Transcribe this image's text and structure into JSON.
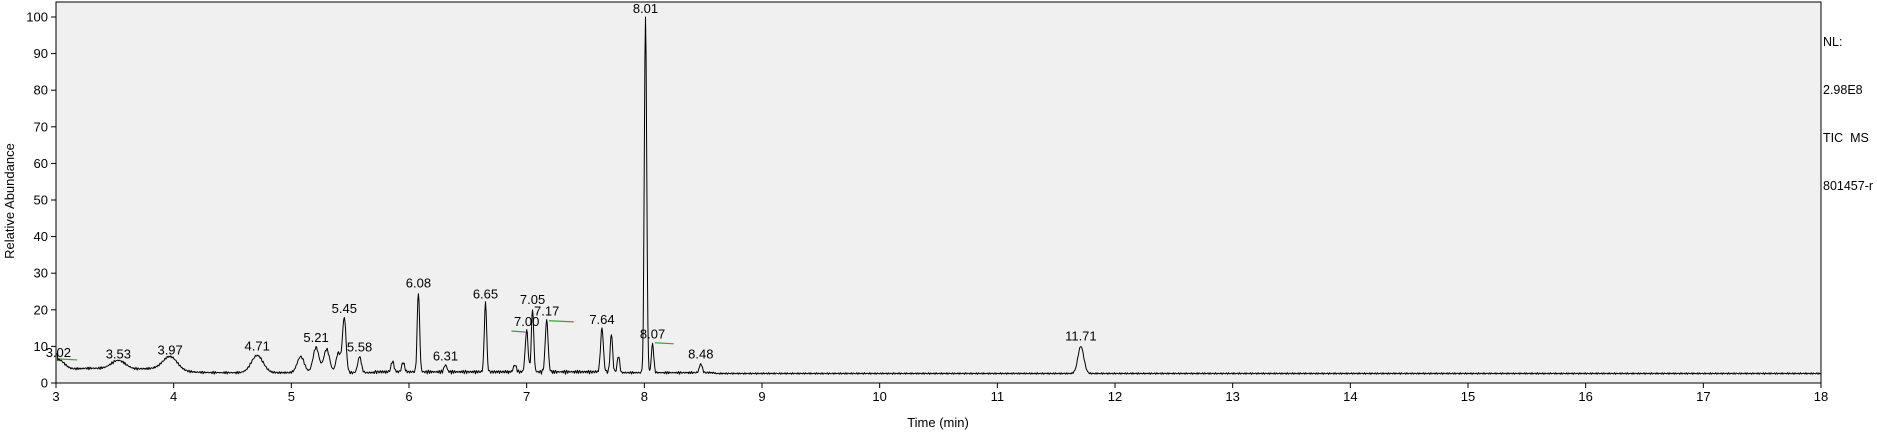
{
  "chart_data": {
    "type": "line",
    "xlabel": "Time (min)",
    "ylabel": "Relative Abundance",
    "xlim": [
      3,
      18
    ],
    "ylim": [
      0,
      100
    ],
    "x_ticks": [
      "3",
      "4",
      "5",
      "6",
      "7",
      "8",
      "9",
      "10",
      "11",
      "12",
      "13",
      "14",
      "15",
      "16",
      "17",
      "18"
    ],
    "y_ticks": [
      "0",
      "10",
      "20",
      "30",
      "40",
      "50",
      "60",
      "70",
      "80",
      "90",
      "100"
    ],
    "info_lines": [
      "NL:",
      "2.98E8",
      "TIC  MS",
      "801457-r"
    ],
    "baseline": 2.6,
    "peaks": [
      {
        "rt": 3.02,
        "label": "3.02",
        "height": 5.5,
        "labeled": true,
        "width": 0.05
      },
      {
        "rt": 3.53,
        "label": "3.53",
        "height": 5.0,
        "labeled": true,
        "width": 0.06
      },
      {
        "rt": 3.97,
        "label": "3.97",
        "height": 6.2,
        "labeled": true,
        "width": 0.06
      },
      {
        "rt": 4.71,
        "label": "4.71",
        "height": 7.3,
        "labeled": true,
        "width": 0.05
      },
      {
        "rt": 5.08,
        "label": "",
        "height": 7.0,
        "labeled": false,
        "width": 0.03
      },
      {
        "rt": 5.21,
        "label": "5.21",
        "height": 9.5,
        "labeled": true,
        "width": 0.025
      },
      {
        "rt": 5.3,
        "label": "",
        "height": 9.0,
        "labeled": false,
        "width": 0.025
      },
      {
        "rt": 5.4,
        "label": "",
        "height": 8.0,
        "labeled": false,
        "width": 0.02
      },
      {
        "rt": 5.45,
        "label": "5.45",
        "height": 17.5,
        "labeled": true,
        "width": 0.015
      },
      {
        "rt": 5.58,
        "label": "5.58",
        "height": 7.0,
        "labeled": true,
        "width": 0.015
      },
      {
        "rt": 5.86,
        "label": "",
        "height": 5.5,
        "labeled": false,
        "width": 0.012
      },
      {
        "rt": 5.95,
        "label": "",
        "height": 5.2,
        "labeled": false,
        "width": 0.012
      },
      {
        "rt": 6.08,
        "label": "6.08",
        "height": 24.5,
        "labeled": true,
        "width": 0.01
      },
      {
        "rt": 6.31,
        "label": "6.31",
        "height": 4.5,
        "labeled": true,
        "width": 0.012
      },
      {
        "rt": 6.65,
        "label": "6.65",
        "height": 21.5,
        "labeled": true,
        "width": 0.01
      },
      {
        "rt": 6.9,
        "label": "",
        "height": 4.5,
        "labeled": false,
        "width": 0.012
      },
      {
        "rt": 7.0,
        "label": "7.00",
        "height": 14.0,
        "labeled": true,
        "width": 0.012
      },
      {
        "rt": 7.05,
        "label": "7.05",
        "height": 20.0,
        "labeled": true,
        "width": 0.01
      },
      {
        "rt": 7.17,
        "label": "7.17",
        "height": 16.8,
        "labeled": true,
        "width": 0.012
      },
      {
        "rt": 7.64,
        "label": "7.64",
        "height": 14.5,
        "labeled": true,
        "width": 0.012
      },
      {
        "rt": 7.72,
        "label": "",
        "height": 13.0,
        "labeled": false,
        "width": 0.01
      },
      {
        "rt": 7.78,
        "label": "",
        "height": 7.0,
        "labeled": false,
        "width": 0.01
      },
      {
        "rt": 8.01,
        "label": "8.01",
        "height": 100,
        "labeled": true,
        "width": 0.01
      },
      {
        "rt": 8.07,
        "label": "8.07",
        "height": 10.5,
        "labeled": true,
        "width": 0.01
      },
      {
        "rt": 8.48,
        "label": "8.48",
        "height": 5.0,
        "labeled": true,
        "width": 0.012
      },
      {
        "rt": 11.71,
        "label": "11.71",
        "height": 10.0,
        "labeled": true,
        "width": 0.025
      }
    ],
    "baseline_marks": [
      {
        "x1": 3.02,
        "x2": 3.18,
        "y": 6.6
      },
      {
        "x1": 6.87,
        "x2": 6.99,
        "y": 14.2
      },
      {
        "x1": 7.19,
        "x2": 7.4,
        "y": 17.0
      },
      {
        "x1": 8.09,
        "x2": 8.25,
        "y": 11.0
      }
    ]
  }
}
